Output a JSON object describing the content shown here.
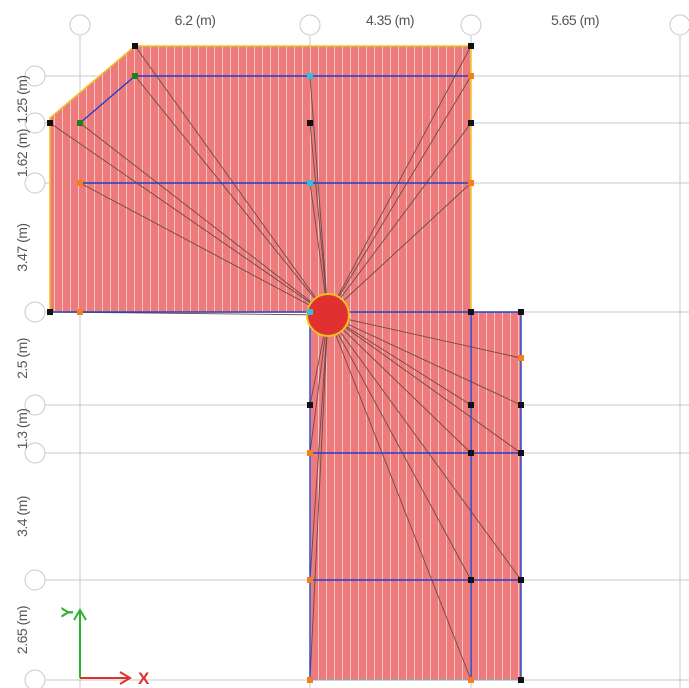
{
  "dimensions": {
    "horizontal": [
      "6.2 (m)",
      "4.35 (m)",
      "5.65 (m)"
    ],
    "vertical": [
      "1.25 (m)",
      "1.62 (m)",
      "3.47 (m)",
      "2.5 (m)",
      "1.3 (m)",
      "3.4 (m)",
      "2.65 (m)"
    ]
  },
  "axes": {
    "x": "X",
    "y": "Y"
  }
}
